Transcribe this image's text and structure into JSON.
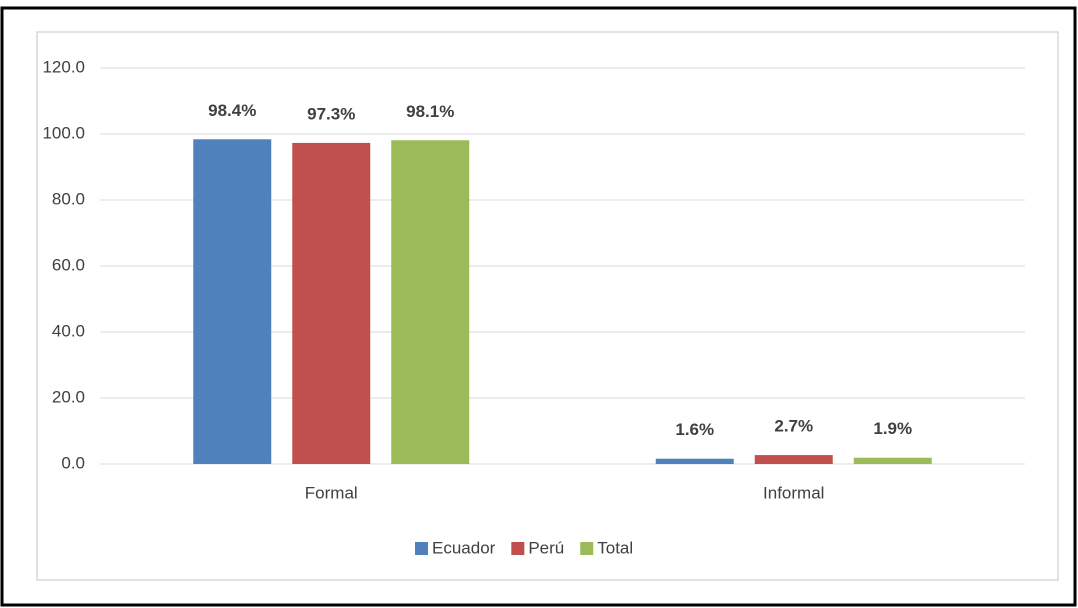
{
  "chart_data": {
    "type": "bar",
    "categories": [
      "Formal",
      "Informal"
    ],
    "series": [
      {
        "name": "Ecuador",
        "color": "#4f81bd",
        "values": [
          98.4,
          1.6
        ],
        "value_labels": [
          "98.4%",
          "1.6%"
        ]
      },
      {
        "name": "Perú",
        "color": "#c0504d",
        "values": [
          97.3,
          2.7
        ],
        "value_labels": [
          "97.3%",
          "2.7%"
        ]
      },
      {
        "name": "Total",
        "color": "#9bbb59",
        "values": [
          98.1,
          1.9
        ],
        "value_labels": [
          "98.1%",
          "1.9%"
        ]
      }
    ],
    "ylim": [
      0,
      120
    ],
    "yticks": [
      {
        "value": 0,
        "label": "0.0"
      },
      {
        "value": 20,
        "label": "20.0"
      },
      {
        "value": 40,
        "label": "40.0"
      },
      {
        "value": 60,
        "label": "60.0"
      },
      {
        "value": 80,
        "label": "80.0"
      },
      {
        "value": 100,
        "label": "100.0"
      },
      {
        "value": 120,
        "label": "120.0"
      }
    ],
    "grid": true,
    "legend": "bottom"
  }
}
